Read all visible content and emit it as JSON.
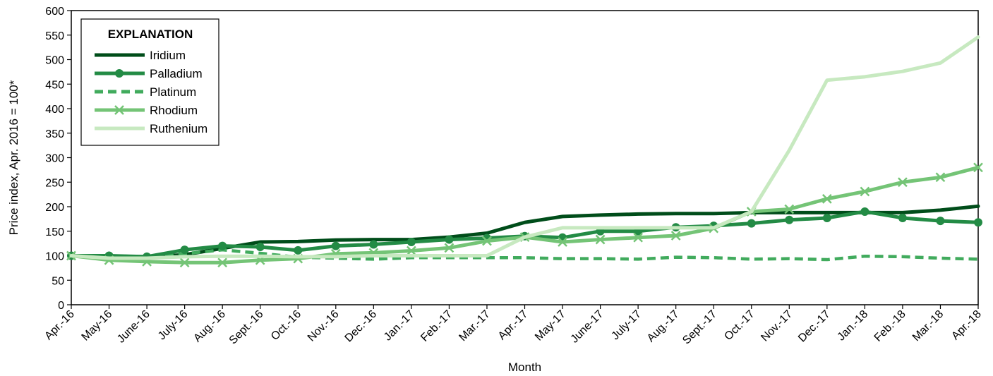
{
  "chart_data": {
    "type": "line",
    "ylabel": "Price index, Apr. 2016 = 100*",
    "xlabel": "Month",
    "ylim": [
      0,
      600
    ],
    "yticks": [
      0,
      50,
      100,
      150,
      200,
      250,
      300,
      350,
      400,
      450,
      500,
      550,
      600
    ],
    "grid": false,
    "legend": {
      "title": "EXPLANATION",
      "placement": "top-left"
    },
    "categories": [
      "Apr.-16",
      "May-16",
      "June-16",
      "July-16",
      "Aug.-16",
      "Sept.-16",
      "Oct.-16",
      "Nov.-16",
      "Dec.-16",
      "Jan.-17",
      "Feb.-17",
      "Mar.-17",
      "Apr.-17",
      "May-17",
      "June-17",
      "July-17",
      "Aug.-17",
      "Sept.-17",
      "Oct.-17",
      "Nov.-17",
      "Dec.-17",
      "Jan.-18",
      "Feb.-18",
      "Mar.-18",
      "Apr.-18"
    ],
    "series": [
      {
        "name": "Iridium",
        "color": "#004d1a",
        "dash": "solid",
        "marker": "none",
        "values": [
          100,
          98,
          98,
          102,
          115,
          128,
          129,
          132,
          133,
          133,
          138,
          146,
          168,
          180,
          183,
          185,
          186,
          186,
          188,
          188,
          188,
          188,
          188,
          193,
          201
        ]
      },
      {
        "name": "Palladium",
        "color": "#238b45",
        "dash": "solid",
        "marker": "circle",
        "values": [
          100,
          100,
          98,
          112,
          120,
          118,
          111,
          120,
          123,
          128,
          133,
          136,
          140,
          137,
          150,
          150,
          158,
          161,
          166,
          173,
          177,
          190,
          177,
          171,
          168
        ]
      },
      {
        "name": "Platinum",
        "color": "#41ab5d",
        "dash": "dashed",
        "marker": "none",
        "values": [
          100,
          100,
          98,
          104,
          112,
          105,
          97,
          95,
          93,
          96,
          96,
          96,
          96,
          94,
          94,
          93,
          97,
          96,
          93,
          94,
          92,
          99,
          98,
          95,
          93
        ]
      },
      {
        "name": "Rhodium",
        "color": "#74c476",
        "dash": "solid",
        "marker": "x",
        "values": [
          100,
          91,
          88,
          86,
          86,
          91,
          94,
          104,
          106,
          110,
          116,
          130,
          138,
          128,
          133,
          137,
          141,
          156,
          190,
          195,
          216,
          231,
          250,
          260,
          280
        ]
      },
      {
        "name": "Ruthenium",
        "color": "#c7e9c0",
        "dash": "solid",
        "marker": "none",
        "values": [
          100,
          95,
          95,
          98,
          99,
          99,
          98,
          98,
          100,
          100,
          100,
          100,
          138,
          157,
          157,
          157,
          157,
          157,
          190,
          315,
          458,
          465,
          476,
          493,
          546
        ]
      }
    ]
  }
}
